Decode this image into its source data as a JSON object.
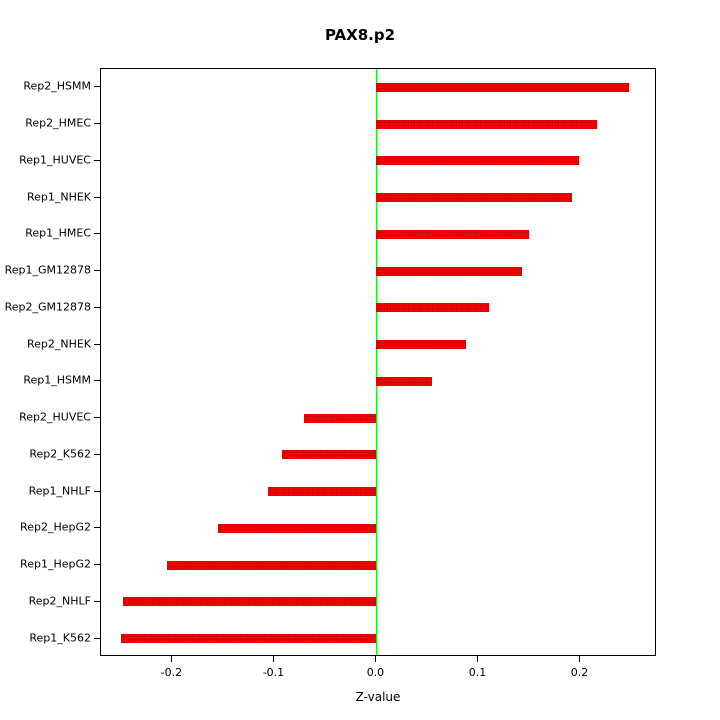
{
  "title": "PAX8.p2",
  "chart_data": {
    "type": "bar",
    "orientation": "horizontal",
    "title": "PAX8.p2",
    "xlabel": "Z-value",
    "ylabel": "",
    "categories": [
      "Rep2_HSMM",
      "Rep2_HMEC",
      "Rep1_HUVEC",
      "Rep1_NHEK",
      "Rep1_HMEC",
      "Rep1_GM12878",
      "Rep2_GM12878",
      "Rep2_NHEK",
      "Rep1_HSMM",
      "Rep2_HUVEC",
      "Rep2_K562",
      "Rep1_NHLF",
      "Rep2_HepG2",
      "Rep1_HepG2",
      "Rep2_NHLF",
      "Rep1_K562"
    ],
    "values": [
      0.248,
      0.216,
      0.199,
      0.192,
      0.15,
      0.143,
      0.11,
      0.088,
      0.054,
      -0.071,
      -0.093,
      -0.106,
      -0.155,
      -0.205,
      -0.248,
      -0.25
    ],
    "xlim": [
      -0.27,
      0.275
    ],
    "xticks": [
      -0.2,
      -0.1,
      0,
      0.1,
      0.2
    ],
    "xtick_labels": [
      "-0.2",
      "-0.1",
      "0.0",
      "0.1",
      "0.2"
    ],
    "bar_color": "#ff0000",
    "zero_line_color": "#00ff00",
    "axis_color": "#000000",
    "grid": false,
    "legend": null
  }
}
